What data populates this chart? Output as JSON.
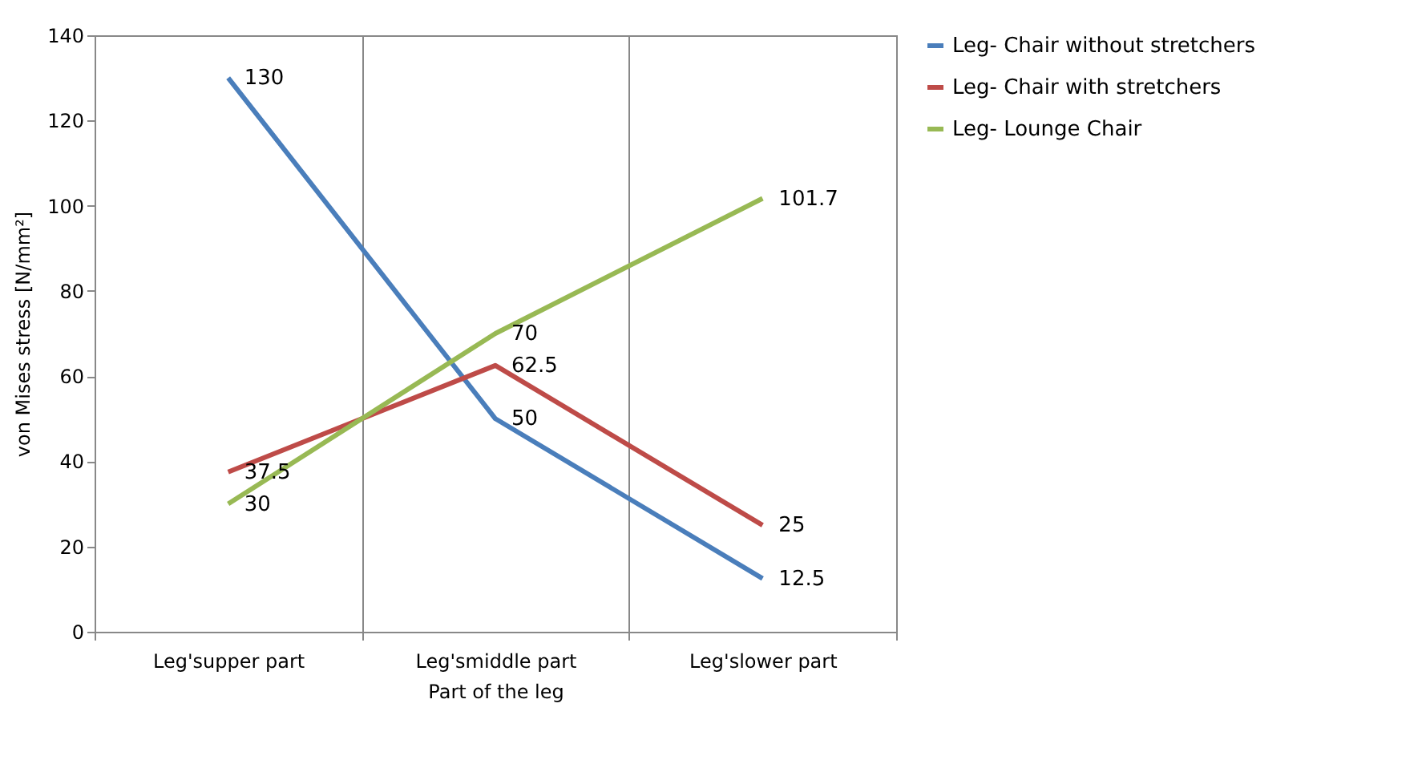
{
  "chart_data": {
    "type": "line",
    "xlabel": "Part of the leg",
    "ylabel": "von Mises stress [N/mm²]",
    "categories": [
      "Leg'supper part",
      "Leg'smiddle part",
      "Leg'slower part"
    ],
    "series": [
      {
        "name": "Leg- Chair without stretchers",
        "color": "#4a7ebb",
        "values": [
          130,
          50,
          12.5
        ]
      },
      {
        "name": "Leg- Chair with stretchers",
        "color": "#be4b48",
        "values": [
          37.5,
          62.5,
          25
        ]
      },
      {
        "name": "Leg- Lounge Chair",
        "color": "#98b954",
        "values": [
          30,
          70,
          101.7
        ]
      }
    ],
    "ylim": [
      0,
      140
    ],
    "yticks": [
      0,
      20,
      40,
      60,
      80,
      100,
      120,
      140
    ],
    "grid": "x",
    "legend": "right",
    "marker": "none",
    "line_style": "solid",
    "data_labels": true
  }
}
